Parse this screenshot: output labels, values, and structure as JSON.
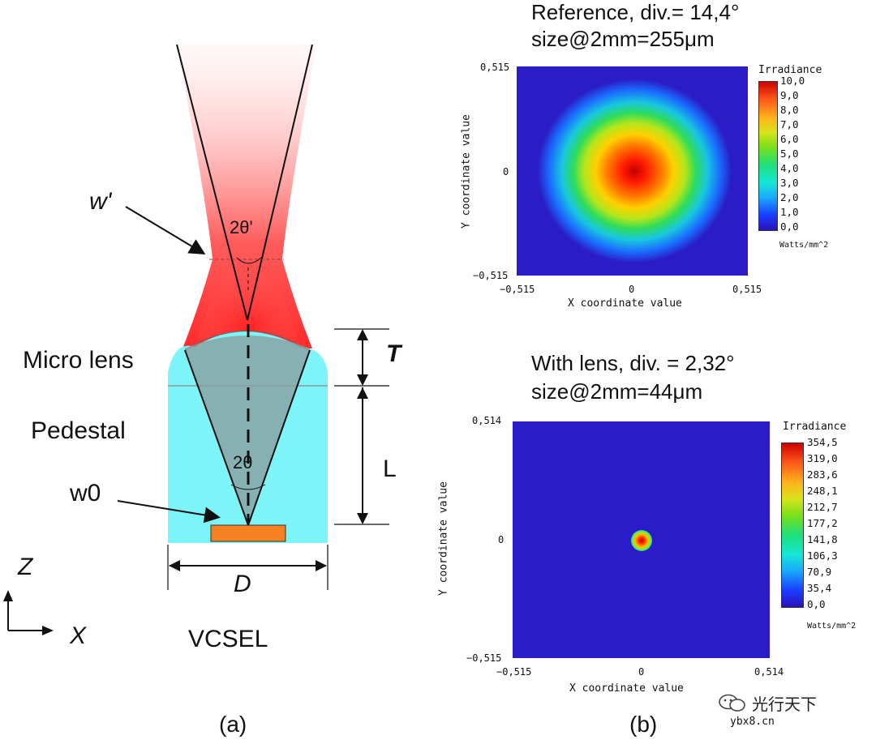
{
  "panel_a": {
    "labels": {
      "w_prime": "w'",
      "theta_prime": "2θ'",
      "micro_lens": "Micro lens",
      "pedestal": "Pedestal",
      "theta": "2θ",
      "w0": "w0",
      "T": "T",
      "L": "L",
      "D": "D",
      "z_axis": "Z",
      "x_axis": "X",
      "vcsel": "VCSEL"
    },
    "caption": "(a)"
  },
  "panel_b": {
    "caption": "(b)",
    "reference": {
      "title_line1": "Reference, div.= 14,4°",
      "title_line2": "size@2mm=255μm",
      "y_top": "0,515",
      "y_mid": "0",
      "y_bottom": "−0,515",
      "x_left": "−0,515",
      "x_mid": "0",
      "x_right": "0,515",
      "xlabel": "X coordinate value",
      "ylabel": "Y coordinate value",
      "colorbar_title": "Irradiance",
      "colorbar_ticks": [
        "10,0",
        "9,0",
        "8,0",
        "7,0",
        "6,0",
        "5,0",
        "4,0",
        "3,0",
        "2,0",
        "1,0",
        "0,0"
      ],
      "colorbar_unit": "Watts/mm^2"
    },
    "with_lens": {
      "title_line1": "With lens, div. = 2,32°",
      "title_line2": "size@2mm=44μm",
      "y_top": "0,514",
      "y_mid": "0",
      "y_bottom": "−0,515",
      "x_left": "−0,515",
      "x_mid": "0",
      "x_right": "0,514",
      "xlabel": "X coordinate value",
      "ylabel": "Y coordinate value",
      "colorbar_title": "Irradiance",
      "colorbar_ticks": [
        "354,5",
        "319,0",
        "283,6",
        "248,1",
        "212,7",
        "177,2",
        "141,8",
        "106,3",
        "70,9",
        "35,4",
        "0,0"
      ],
      "colorbar_unit": "Watts/mm^2"
    }
  },
  "watermark": {
    "brand": "光行天下",
    "site": "ybx8.cn"
  },
  "colors": {
    "beam_red": "#ff3030",
    "pedestal_cyan": "#7df4f7",
    "emitter_orange": "#f58220",
    "plot_blue": "#2a1cc7"
  }
}
